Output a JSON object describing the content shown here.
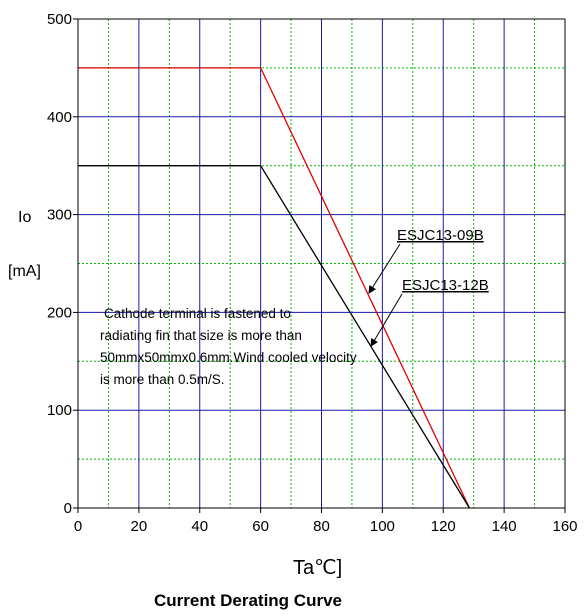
{
  "chart_data": {
    "type": "line",
    "title": "Current Derating Curve",
    "xlabel": "Ta℃]",
    "ylabel_lines": [
      "Io",
      "[mA]"
    ],
    "xlim": [
      0,
      160
    ],
    "ylim": [
      0,
      500
    ],
    "x_ticks": [
      0,
      20,
      40,
      60,
      80,
      100,
      120,
      140,
      160
    ],
    "y_ticks": [
      0,
      100,
      200,
      300,
      400,
      500
    ],
    "grid": true,
    "series": [
      {
        "name": "ESJC13-09B",
        "color": "#e00000",
        "x": [
          0,
          60,
          128.6
        ],
        "y": [
          450,
          450,
          0
        ]
      },
      {
        "name": "ESJC13-12B",
        "color": "#000000",
        "x": [
          0,
          60,
          128.6
        ],
        "y": [
          350,
          350,
          0
        ]
      }
    ],
    "annotation": [
      "Cathode terminal is fastened to",
      "radiating fin that size is more than",
      "50mmx50mmx0.6mm.Wind cooled velocity",
      "is more than 0.5m/S."
    ]
  }
}
